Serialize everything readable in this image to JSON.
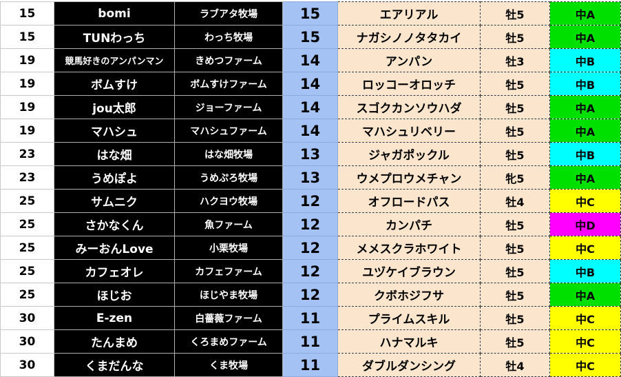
{
  "grade_colors": {
    "中A": "#00e000",
    "中B": "#00ffff",
    "中C": "#ffff00",
    "中D": "#ff00ff"
  },
  "rows": [
    {
      "rank": "15",
      "owner": "bomi",
      "farm": "ラブアタ牧場",
      "points": "15",
      "horse": "エアリアル",
      "sex_age": "牡5",
      "grade": "中A"
    },
    {
      "rank": "15",
      "owner": "TUNわっち",
      "farm": "わっち牧場",
      "points": "15",
      "horse": "ナガシノノタタカイ",
      "sex_age": "牡5",
      "grade": "中A"
    },
    {
      "rank": "19",
      "owner": "競馬好きのアンパンマン",
      "farm": "きめつファーム",
      "points": "14",
      "horse": "アンパン",
      "sex_age": "牡3",
      "grade": "中B"
    },
    {
      "rank": "19",
      "owner": "ボムすけ",
      "farm": "ボムすけファーム",
      "points": "14",
      "horse": "ロッコーオロッチ",
      "sex_age": "牡5",
      "grade": "中B"
    },
    {
      "rank": "19",
      "owner": "jou太郎",
      "farm": "ジョーファーム",
      "points": "14",
      "horse": "スゴクカンソウハダ",
      "sex_age": "牡5",
      "grade": "中A"
    },
    {
      "rank": "19",
      "owner": "マハシュ",
      "farm": "マハシュファーム",
      "points": "14",
      "horse": "マハシュリベリー",
      "sex_age": "牡5",
      "grade": "中A"
    },
    {
      "rank": "23",
      "owner": "はな畑",
      "farm": "はな畑牧場",
      "points": "13",
      "horse": "ジャガポックル",
      "sex_age": "牡5",
      "grade": "中B"
    },
    {
      "rank": "23",
      "owner": "うめぽよ",
      "farm": "うめぷろ牧場",
      "points": "13",
      "horse": "ウメプロウメチャン",
      "sex_age": "牝5",
      "grade": "中A"
    },
    {
      "rank": "25",
      "owner": "サムニク",
      "farm": "ハクヨウ牧場",
      "points": "12",
      "horse": "オフロードパス",
      "sex_age": "牡4",
      "grade": "中C"
    },
    {
      "rank": "25",
      "owner": "さかなくん",
      "farm": "魚ファーム",
      "points": "12",
      "horse": "カンパチ",
      "sex_age": "牡5",
      "grade": "中D"
    },
    {
      "rank": "25",
      "owner": "みーおんLove",
      "farm": "小栗牧場",
      "points": "12",
      "horse": "メメスクラホワイト",
      "sex_age": "牡5",
      "grade": "中C"
    },
    {
      "rank": "25",
      "owner": "カフェオレ",
      "farm": "カフェファーム",
      "points": "12",
      "horse": "ユヅケイブラウン",
      "sex_age": "牡5",
      "grade": "中B"
    },
    {
      "rank": "25",
      "owner": "ほじお",
      "farm": "ほじやま牧場",
      "points": "12",
      "horse": "クボホジフサ",
      "sex_age": "牡5",
      "grade": "中A"
    },
    {
      "rank": "30",
      "owner": "E-zen",
      "farm": "白薔薇ファーム",
      "points": "11",
      "horse": "プライムスキル",
      "sex_age": "牡5",
      "grade": "中C"
    },
    {
      "rank": "30",
      "owner": "たんまめ",
      "farm": "くろまめファーム",
      "points": "11",
      "horse": "ハナマルキ",
      "sex_age": "牡5",
      "grade": "中C"
    },
    {
      "rank": "30",
      "owner": "くまだんな",
      "farm": "くま牧場",
      "points": "11",
      "horse": "ダブルダンシング",
      "sex_age": "牡4",
      "grade": "中C"
    }
  ]
}
